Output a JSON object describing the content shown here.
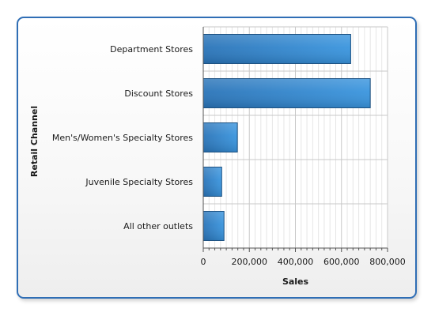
{
  "chart_data": {
    "type": "bar",
    "orientation": "horizontal",
    "categories": [
      "Department Stores",
      "Discount Stores",
      "Men's/Women's Specialty Stores",
      "Juvenile Specialty Stores",
      "All other outlets"
    ],
    "values": [
      640000,
      725000,
      148000,
      80000,
      90000
    ],
    "xlabel": "Sales",
    "ylabel": "Retail Channel",
    "xlim": [
      0,
      800000
    ],
    "x_ticks": [
      "0",
      "200,000",
      "400,000",
      "600,000",
      "800,000"
    ],
    "grid": "vertical",
    "bar_color": "#2e86d0",
    "bar_edge_color": "#1a4f80"
  }
}
